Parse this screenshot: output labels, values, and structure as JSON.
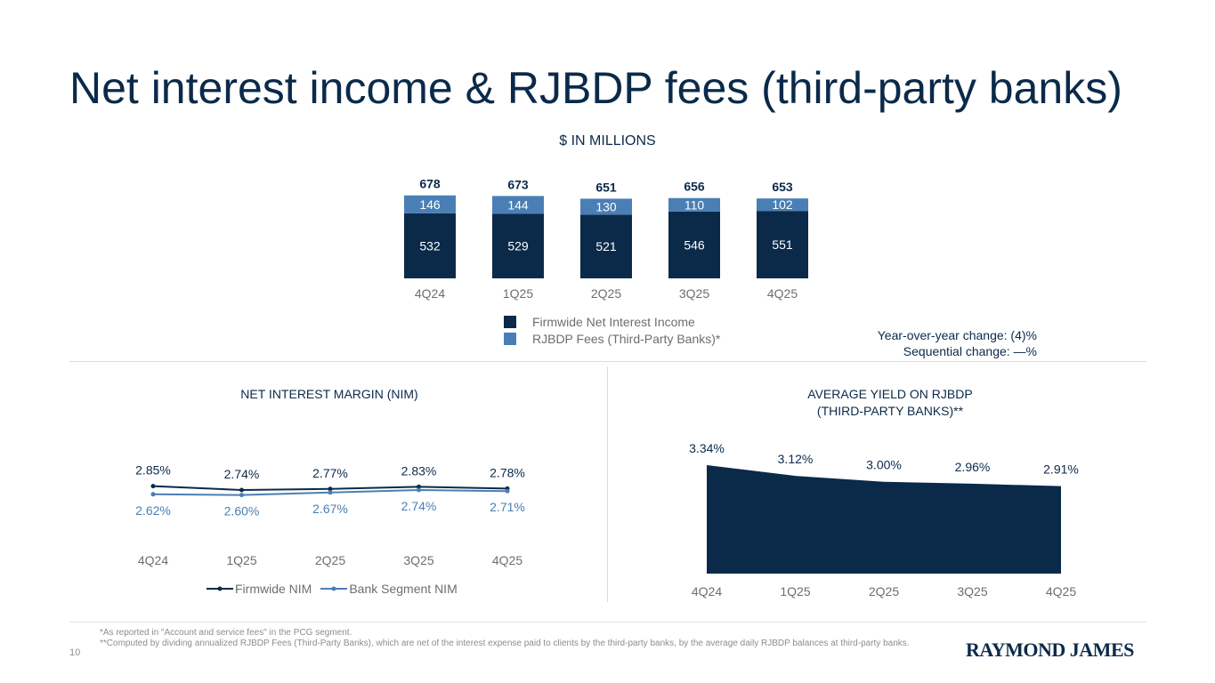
{
  "title": "Net interest income & RJBDP fees (third-party banks)",
  "units_label": "$ IN MILLIONS",
  "colors": {
    "dark_navy": "#0b2a4a",
    "steel_blue": "#4a7fb5",
    "gray": "#6b6e72"
  },
  "legend_top": {
    "items": [
      {
        "label": "Firmwide Net Interest Income",
        "color": "#0b2a4a"
      },
      {
        "label": "RJBDP Fees (Third-Party Banks)*",
        "color": "#4a7fb5"
      }
    ]
  },
  "changes": {
    "yoy": "Year-over-year change: (4)%",
    "seq": "Sequential change: —%"
  },
  "nim_title": "NET INTEREST MARGIN (NIM)",
  "yield_title_line1": "AVERAGE YIELD ON RJBDP",
  "yield_title_line2": "(THIRD-PARTY BANKS)**",
  "nim_legend": {
    "firmwide": "Firmwide NIM",
    "bank": "Bank Segment NIM"
  },
  "footnotes": {
    "line1": "*As reported in \"Account and service fees\" in the PCG segment.",
    "line2": "**Computed by dividing annualized RJBDP Fees (Third-Party Banks), which are net of the interest expense paid to clients by the third-party banks, by the average daily RJBDP balances at third-party banks."
  },
  "page_number": "10",
  "logo_text": "RAYMOND JAMES",
  "chart_data": [
    {
      "type": "bar",
      "stacked": true,
      "categories": [
        "4Q24",
        "1Q25",
        "2Q25",
        "3Q25",
        "4Q25"
      ],
      "series": [
        {
          "name": "Firmwide Net Interest Income",
          "values": [
            532,
            529,
            521,
            546,
            551
          ],
          "labels": [
            "532",
            "529",
            "521",
            "546",
            "551"
          ]
        },
        {
          "name": "RJBDP Fees (Third-Party Banks)*",
          "values": [
            146,
            144,
            130,
            110,
            102
          ],
          "labels": [
            "146",
            "144",
            "130",
            "110",
            "102"
          ]
        }
      ],
      "totals": [
        678,
        673,
        651,
        656,
        653
      ],
      "total_labels": [
        "678",
        "673",
        "651",
        "656",
        "653"
      ],
      "title": "$ IN MILLIONS"
    },
    {
      "type": "line",
      "title": "NET INTEREST MARGIN (NIM)",
      "x": [
        "4Q24",
        "1Q25",
        "2Q25",
        "3Q25",
        "4Q25"
      ],
      "series": [
        {
          "name": "Firmwide NIM",
          "values": [
            2.85,
            2.74,
            2.77,
            2.83,
            2.78
          ],
          "labels": [
            "2.85%",
            "2.74%",
            "2.77%",
            "2.83%",
            "2.78%"
          ]
        },
        {
          "name": "Bank Segment NIM",
          "values": [
            2.62,
            2.6,
            2.67,
            2.74,
            2.71
          ],
          "labels": [
            "2.62%",
            "2.60%",
            "2.67%",
            "2.74%",
            "2.71%"
          ]
        }
      ]
    },
    {
      "type": "area",
      "title": "AVERAGE YIELD ON RJBDP (THIRD-PARTY BANKS)**",
      "x": [
        "4Q24",
        "1Q25",
        "2Q25",
        "3Q25",
        "4Q25"
      ],
      "values": [
        3.34,
        3.12,
        3.0,
        2.96,
        2.91
      ],
      "labels": [
        "3.34%",
        "3.12%",
        "3.00%",
        "2.96%",
        "2.91%"
      ]
    }
  ]
}
